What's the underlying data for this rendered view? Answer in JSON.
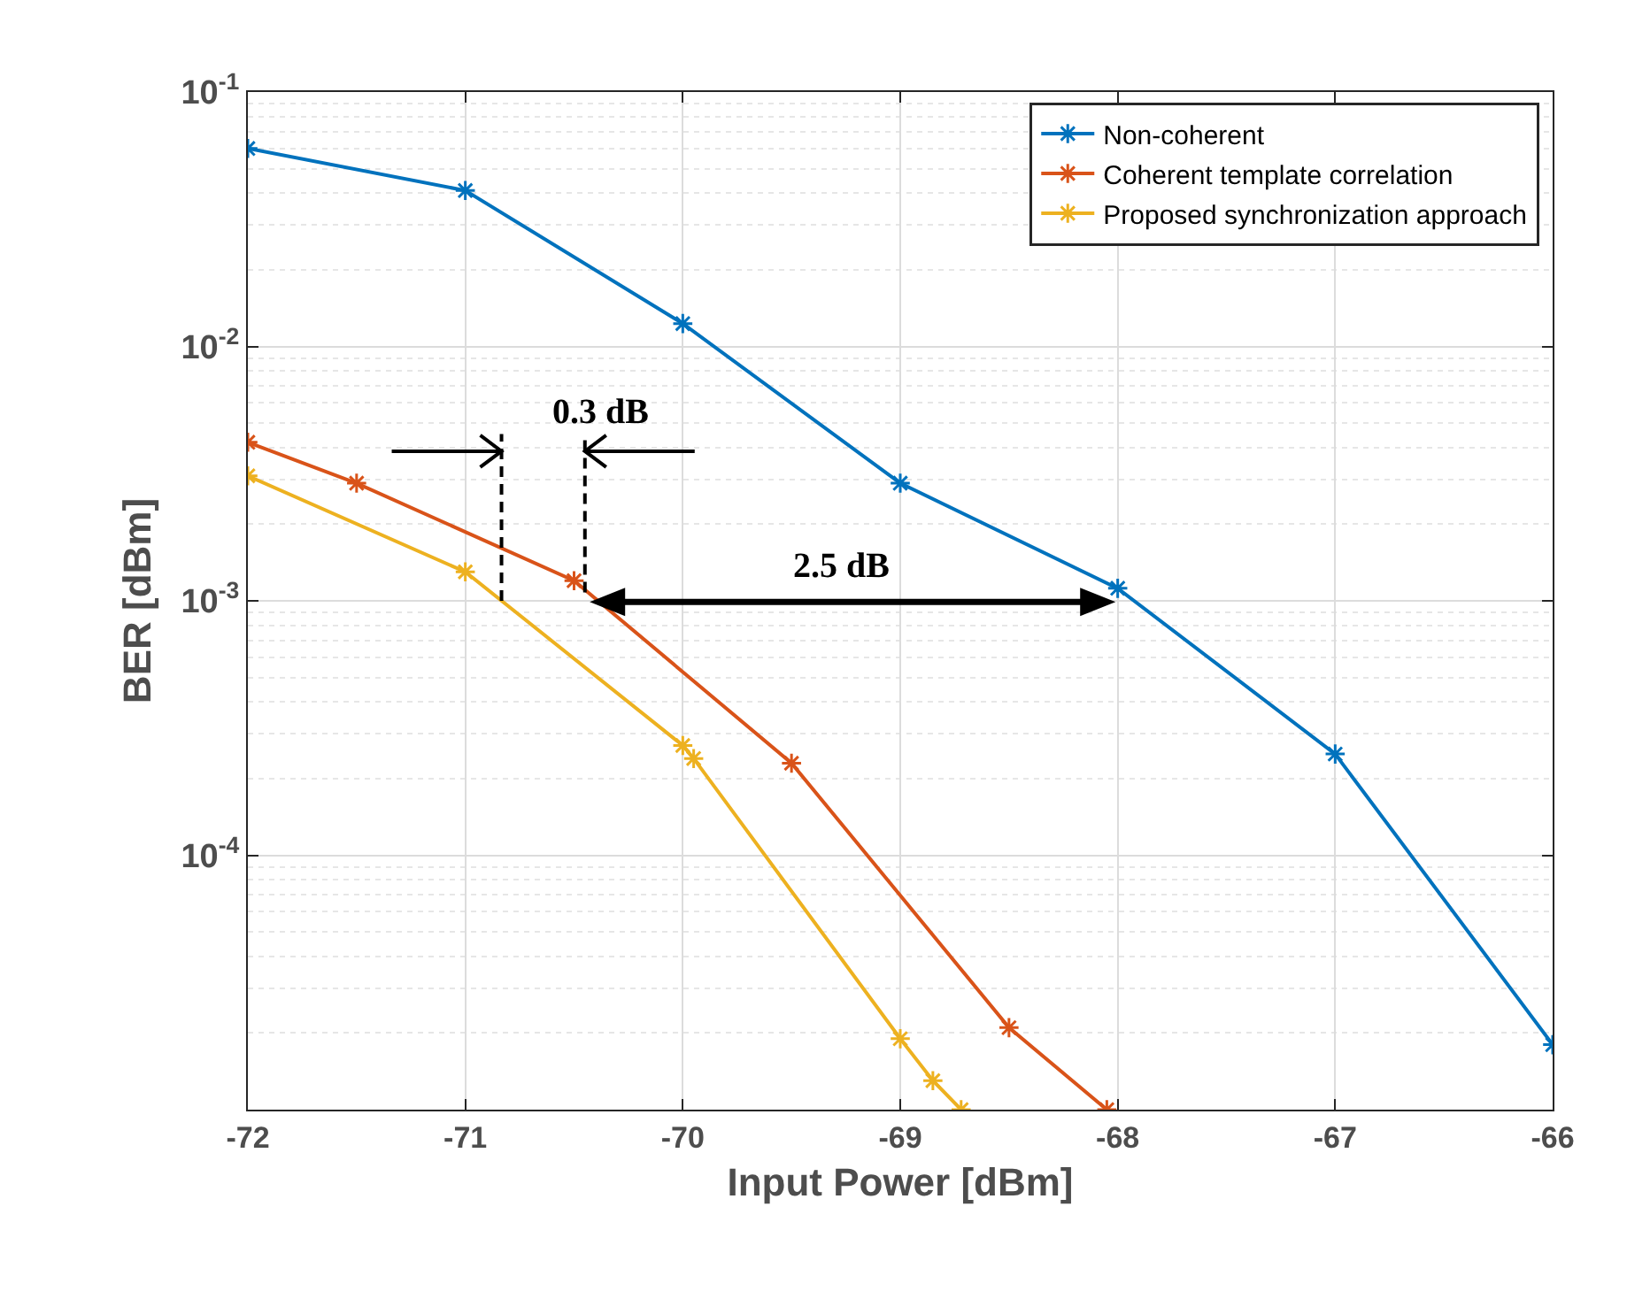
{
  "chart_data": {
    "type": "line",
    "xlabel": "Input Power [dBm]",
    "ylabel": "BER [dBm]",
    "log": "y",
    "xlim": [
      -72,
      -66
    ],
    "xticks": [
      -72,
      -71,
      -70,
      -69,
      -68,
      -67,
      -66
    ],
    "ylim": [
      1e-05,
      0.1
    ],
    "yticks": [
      {
        "value": 0.1,
        "label": "10$^{-1}$"
      },
      {
        "value": 0.01,
        "label": "10$^{-2}$"
      },
      {
        "value": 0.001,
        "label": "10$^{-3}$"
      },
      {
        "value": 0.0001,
        "label": "10$^{-4}$"
      }
    ],
    "grid": true,
    "legend": "top right",
    "marker": "cross",
    "line_style": "solid",
    "series": [
      {
        "name": "Non-coherent",
        "color": "#0072bd",
        "x": [
          -72,
          -71,
          -70,
          -69,
          -68,
          -67,
          -66
        ],
        "values": [
          0.06,
          0.041,
          0.0123,
          0.0029,
          0.00112,
          0.00025,
          1.8e-05
        ]
      },
      {
        "name": "Coherent template correlation",
        "color": "#d95319",
        "x": [
          -72,
          -71.5,
          -70.5,
          -69.5,
          -68.5,
          -68.05
        ],
        "values": [
          0.0042,
          0.0029,
          0.0012,
          0.00023,
          2.1e-05,
          1e-05
        ]
      },
      {
        "name": "Proposed synchronization approach",
        "color": "#edb120",
        "x": [
          -72,
          -71,
          -70,
          -69.95,
          -69,
          -68.85,
          -68.72
        ],
        "values": [
          0.0031,
          0.0013,
          0.00027,
          0.00024,
          1.9e-05,
          1.3e-05,
          1e-05
        ]
      }
    ],
    "annotations": [
      {
        "text": "0.3 dB",
        "x": -70.45,
        "y": 0.00108
      },
      "2.5 dB"
    ]
  }
}
